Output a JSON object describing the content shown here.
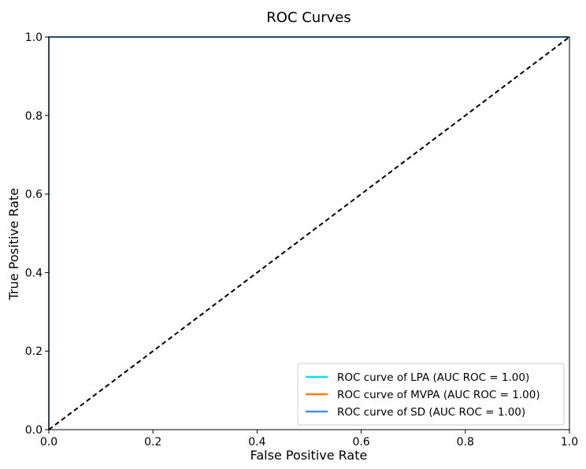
{
  "chart_data": {
    "type": "line",
    "title": "ROC Curves",
    "xlabel": "False Positive Rate",
    "ylabel": "True Positive Rate",
    "xlim": [
      0.0,
      1.0
    ],
    "ylim": [
      0.0,
      1.0
    ],
    "xticks": [
      "0.0",
      "0.2",
      "0.4",
      "0.6",
      "0.8",
      "1.0"
    ],
    "yticks": [
      "0.0",
      "0.2",
      "0.4",
      "0.6",
      "0.8",
      "1.0"
    ],
    "grid": false,
    "legend_position": "lower-right",
    "series": [
      {
        "name": "ROC curve of LPA (AUC ROC = 1.00)",
        "color": "#00e5ee",
        "points": [
          [
            0,
            0
          ],
          [
            0,
            1
          ],
          [
            1,
            1
          ]
        ]
      },
      {
        "name": "ROC curve of MVPA (AUC ROC = 1.00)",
        "color": "#ff7f0e",
        "points": [
          [
            0,
            0
          ],
          [
            0,
            1
          ],
          [
            1,
            1
          ]
        ]
      },
      {
        "name": "ROC curve of SD (AUC ROC = 1.00)",
        "color": "#4a90e2",
        "points": [
          [
            0,
            0
          ],
          [
            0,
            1
          ],
          [
            1,
            1
          ]
        ]
      }
    ],
    "reference_line": {
      "points": [
        [
          0,
          0
        ],
        [
          1,
          1
        ]
      ],
      "color": "#000000",
      "style": "dashed"
    }
  }
}
